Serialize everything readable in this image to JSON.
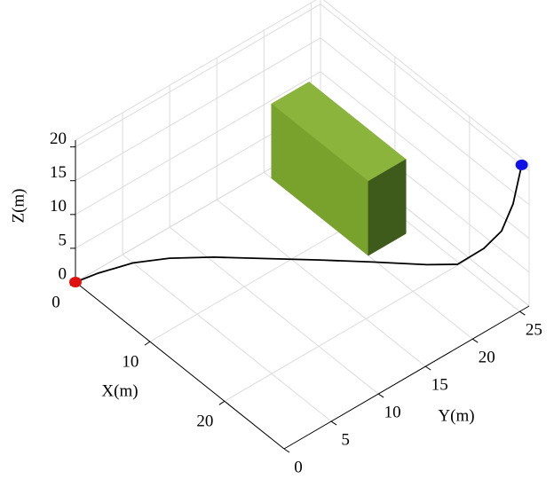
{
  "chart_data": {
    "type": "line3d",
    "xlabel": "X(m)",
    "ylabel": "Y(m)",
    "zlabel": "Z(m)",
    "xlim": [
      0,
      28
    ],
    "ylim": [
      0,
      26
    ],
    "zlim": [
      0,
      21
    ],
    "xticks": [
      0,
      10,
      20
    ],
    "yticks": [
      0,
      5,
      10,
      15,
      20,
      25
    ],
    "zticks": [
      0,
      5,
      10,
      15,
      20
    ],
    "grid": true,
    "series": [
      {
        "color": "#000000",
        "x": [
          0,
          0.4,
          1.4,
          3.0,
          5.4,
          8.5,
          11.7,
          14.9,
          18.2,
          19.9,
          22.8,
          24.8,
          26.1,
          27
        ],
        "y": [
          0,
          2.0,
          5.0,
          7.6,
          10.4,
          13.5,
          16.7,
          19.8,
          22.9,
          24.8,
          25.3,
          25.6,
          25.8,
          26
        ],
        "z": [
          0,
          0,
          0,
          0,
          0,
          0,
          0,
          0,
          0,
          0,
          4.5,
          8.6,
          13.6,
          20
        ]
      }
    ],
    "start_color": "#e01010",
    "end_color": "#1010e8",
    "obstacle": {
      "x": [
        1,
        14
      ],
      "y": [
        20,
        24
      ],
      "z": [
        0,
        11
      ],
      "colors": [
        "#8ab43c",
        "#78a22c",
        "#3f5b1c"
      ]
    }
  }
}
